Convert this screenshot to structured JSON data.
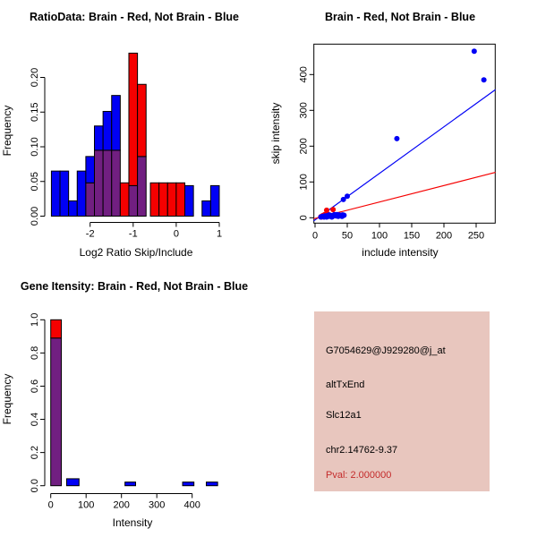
{
  "colors": {
    "red": "#F50000",
    "blue": "#0000F5",
    "overlap": "#711F81",
    "axis": "#000000",
    "info_bg": "#E8C6BE",
    "pval_red": "#C42B2B"
  },
  "chart_data": [
    {
      "type": "bar",
      "subtype": "overlaid-histogram",
      "title": "RatioData: Brain - Red, Not Brain - Blue",
      "xlabel": "Log2 Ratio Skip/Include",
      "ylabel": "Frequency",
      "legend": {
        "Brain": "red",
        "Not Brain": "blue"
      },
      "xlim": [
        -2.95,
        1.05
      ],
      "ylim": [
        0,
        0.24
      ],
      "xticks": [
        -2,
        -1,
        0,
        1
      ],
      "xtick_labels": [
        "-2",
        "-1",
        "0",
        "1"
      ],
      "yticks": [
        0.0,
        0.05,
        0.1,
        0.15,
        0.2
      ],
      "ytick_labels": [
        "0.00",
        "0.05",
        "0.10",
        "0.15",
        "0.20"
      ],
      "bars": [
        {
          "x0": -2.9,
          "x1": -2.7,
          "blue": 0.065,
          "red": 0
        },
        {
          "x0": -2.7,
          "x1": -2.5,
          "blue": 0.065,
          "red": 0
        },
        {
          "x0": -2.5,
          "x1": -2.3,
          "blue": 0.022,
          "red": 0
        },
        {
          "x0": -2.3,
          "x1": -2.1,
          "blue": 0.065,
          "red": 0
        },
        {
          "x0": -2.1,
          "x1": -1.9,
          "blue": 0.086,
          "red": 0.048
        },
        {
          "x0": -1.9,
          "x1": -1.7,
          "blue": 0.13,
          "red": 0.095
        },
        {
          "x0": -1.7,
          "x1": -1.5,
          "blue": 0.151,
          "red": 0.095
        },
        {
          "x0": -1.5,
          "x1": -1.3,
          "blue": 0.174,
          "red": 0.095
        },
        {
          "x0": -1.3,
          "x1": -1.1,
          "blue": 0,
          "red": 0.048
        },
        {
          "x0": -1.1,
          "x1": -0.9,
          "blue": 0.044,
          "red": 0.235
        },
        {
          "x0": -0.9,
          "x1": -0.7,
          "blue": 0.086,
          "red": 0.19
        },
        {
          "x0": -0.6,
          "x1": -0.4,
          "blue": 0,
          "red": 0.048
        },
        {
          "x0": -0.4,
          "x1": -0.2,
          "blue": 0,
          "red": 0.048
        },
        {
          "x0": -0.2,
          "x1": 0.0,
          "blue": 0,
          "red": 0.048
        },
        {
          "x0": 0.0,
          "x1": 0.2,
          "blue": 0,
          "red": 0.048
        },
        {
          "x0": 0.2,
          "x1": 0.4,
          "blue": 0.044,
          "red": 0
        },
        {
          "x0": 0.6,
          "x1": 0.8,
          "blue": 0.022,
          "red": 0
        },
        {
          "x0": 0.8,
          "x1": 1.0,
          "blue": 0.044,
          "red": 0
        }
      ]
    },
    {
      "type": "scatter",
      "title": "Brain - Red, Not Brain - Blue",
      "xlabel": "include intensity",
      "ylabel": "skip intensity",
      "xlim": [
        -2,
        280
      ],
      "ylim": [
        -15,
        485
      ],
      "xticks": [
        0,
        50,
        100,
        150,
        200,
        250
      ],
      "xtick_labels": [
        "0",
        "50",
        "100",
        "150",
        "200",
        "250"
      ],
      "yticks": [
        0,
        100,
        200,
        300,
        400
      ],
      "ytick_labels": [
        "0",
        "100",
        "200",
        "300",
        "400"
      ],
      "series": [
        {
          "name": "Brain",
          "color": "red",
          "points": [
            [
              18,
              21
            ],
            [
              28,
              23
            ],
            [
              9,
              3
            ],
            [
              12,
              6
            ],
            [
              15,
              9
            ],
            [
              19,
              11
            ],
            [
              23,
              7
            ],
            [
              10,
              2
            ]
          ]
        },
        {
          "name": "Not Brain",
          "color": "blue",
          "points": [
            [
              9,
              2
            ],
            [
              11,
              4
            ],
            [
              13,
              3
            ],
            [
              15,
              5
            ],
            [
              17,
              4
            ],
            [
              19,
              6
            ],
            [
              21,
              4
            ],
            [
              23,
              5
            ],
            [
              25,
              6
            ],
            [
              27,
              4
            ],
            [
              29,
              5
            ],
            [
              31,
              7
            ],
            [
              33,
              5
            ],
            [
              35,
              6
            ],
            [
              37,
              8
            ],
            [
              39,
              6
            ],
            [
              41,
              7
            ],
            [
              43,
              8
            ],
            [
              45,
              7
            ],
            [
              14,
              2
            ],
            [
              22,
              8
            ],
            [
              30,
              9
            ],
            [
              36,
              4
            ],
            [
              40,
              5
            ],
            [
              26,
              2
            ],
            [
              34,
              9
            ],
            [
              18,
              2
            ],
            [
              42,
              4
            ],
            [
              44,
              51
            ],
            [
              50,
              60
            ],
            [
              127,
              221
            ],
            [
              247,
              465
            ],
            [
              262,
              385
            ]
          ]
        }
      ],
      "fit_lines": [
        {
          "color": "blue",
          "x": [
            -2,
            280
          ],
          "y": [
            -8.6,
            358
          ]
        },
        {
          "color": "red",
          "x": [
            -2,
            280
          ],
          "y": [
            -2.9,
            126.8
          ]
        }
      ]
    },
    {
      "type": "bar",
      "subtype": "overlaid-histogram",
      "title": "Gene Itensity: Brain - Red, Not Brain - Blue",
      "xlabel": "Intensity",
      "ylabel": "Frequency",
      "legend": {
        "Brain": "red",
        "Not Brain": "blue"
      },
      "xlim": [
        -18,
        490
      ],
      "ylim": [
        0,
        1.0
      ],
      "xticks": [
        0,
        100,
        200,
        300,
        400
      ],
      "xtick_labels": [
        "0",
        "100",
        "200",
        "300",
        "400"
      ],
      "yticks": [
        0.0,
        0.2,
        0.4,
        0.6,
        0.8,
        1.0
      ],
      "ytick_labels": [
        "0.0",
        "0.2",
        "0.4",
        "0.6",
        "0.8",
        "1.0"
      ],
      "bars": [
        {
          "x0": 0,
          "x1": 30,
          "blue": 0.89,
          "red": 1.0
        },
        {
          "x0": 45,
          "x1": 80,
          "blue": 0.042,
          "red": 0
        },
        {
          "x0": 210,
          "x1": 240,
          "blue": 0.022,
          "red": 0
        },
        {
          "x0": 373,
          "x1": 405,
          "blue": 0.022,
          "red": 0
        },
        {
          "x0": 440,
          "x1": 472,
          "blue": 0.022,
          "red": 0
        }
      ]
    }
  ],
  "info_panel": {
    "probe_id": "G7054629@J929280@j_at",
    "event_type": "altTxEnd",
    "gene": "Slc12a1",
    "location": "chr2.14762-9.37",
    "pval": "Pval: 2.000000"
  }
}
